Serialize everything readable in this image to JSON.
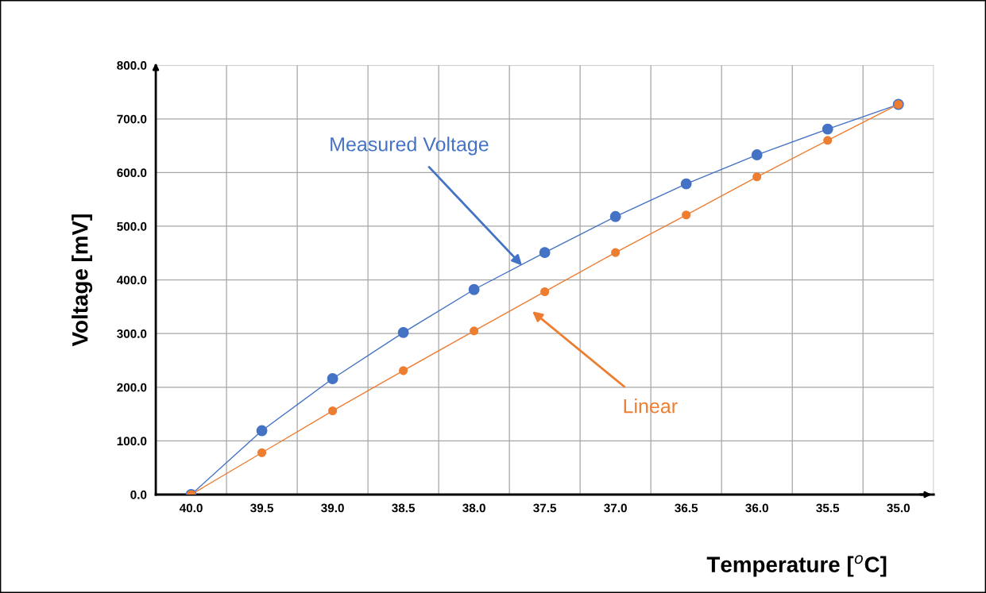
{
  "chart_data": {
    "type": "line",
    "xlabel": "Temperature [$^{o}$C]",
    "ylabel": "Voltage [mV]",
    "categories": [
      "40.0",
      "39.5",
      "39.0",
      "38.5",
      "38.0",
      "37.5",
      "37.0",
      "36.5",
      "36.0",
      "35.5",
      "35.0"
    ],
    "series": [
      {
        "name": "Measured Voltage",
        "color": "#4472c4",
        "values": [
          0,
          119,
          216,
          302,
          382,
          451,
          518,
          579,
          633,
          681,
          727
        ]
      },
      {
        "name": "Linear",
        "color": "#ed7d31",
        "values": [
          0,
          78,
          156,
          231,
          305,
          378,
          451,
          521,
          592,
          660,
          727
        ]
      }
    ],
    "ylim": [
      0,
      800
    ],
    "yticks": [
      {
        "value": 0,
        "label": "0.0"
      },
      {
        "value": 100,
        "label": "100.0"
      },
      {
        "value": 200,
        "label": "200.0"
      },
      {
        "value": 300,
        "label": "300.0"
      },
      {
        "value": 400,
        "label": "400.0"
      },
      {
        "value": 500,
        "label": "500.0"
      },
      {
        "value": 600,
        "label": "600.0"
      },
      {
        "value": 700,
        "label": "700.0"
      },
      {
        "value": 800,
        "label": "800.0"
      }
    ],
    "grid": true,
    "marker": "circle",
    "line_style": "solid",
    "legend": false
  }
}
